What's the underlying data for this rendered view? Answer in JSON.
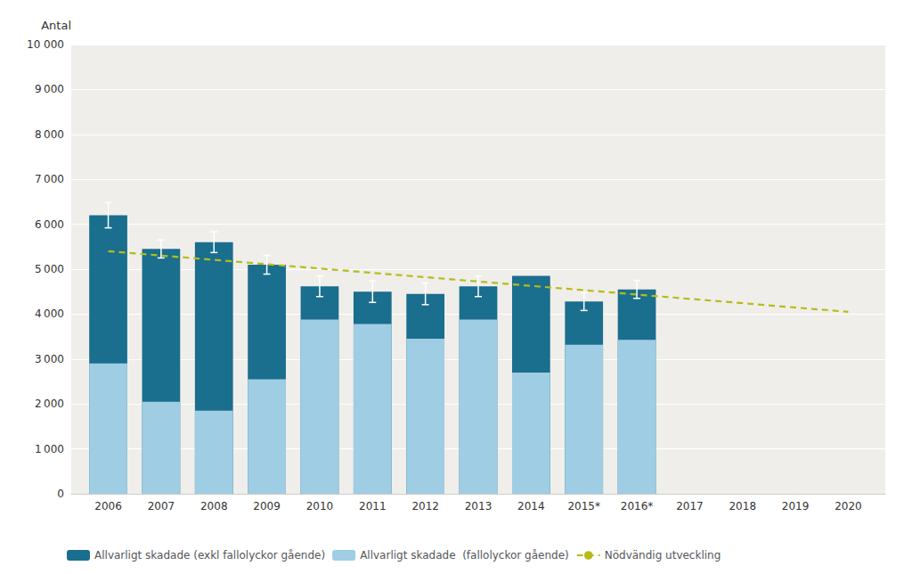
{
  "chart_data": {
    "type": "bar",
    "ylabel": "Antal",
    "x": [
      2006,
      2007,
      2008,
      2009,
      2010,
      2011,
      2012,
      2013,
      2014,
      2015,
      2016
    ],
    "series": [
      {
        "name": "Allvarligt skadade (exkl fallolyckor gående)",
        "color": "#1a6e8e",
        "values": [
          6200,
          5450,
          5600,
          5100,
          4620,
          4500,
          4450,
          4620,
          4850,
          4280,
          4550
        ],
        "error": [
          280,
          200,
          230,
          210,
          230,
          240,
          240,
          230,
          0,
          200,
          200
        ]
      },
      {
        "name": "Allvarligt skadade  (fallolyckor gående)",
        "color": "#9fcde3",
        "values": [
          2900,
          2050,
          1850,
          2550,
          3880,
          3780,
          3450,
          3880,
          2700,
          3320,
          3430
        ]
      },
      {
        "name": "Nödvändig utveckling",
        "type": "line",
        "line_style": "dashed",
        "color": "#b5bc1a",
        "x": [
          2006,
          2020
        ],
        "values": [
          5400,
          4050
        ]
      }
    ],
    "stacked": true,
    "xlim": [
      2005.3,
      2020.7
    ],
    "xticks": [
      2006,
      2007,
      2008,
      2009,
      2010,
      2011,
      2012,
      2013,
      2014,
      {
        "value": 2015,
        "label": "2015*"
      },
      {
        "value": 2016,
        "label": "2016*"
      },
      2017,
      2018,
      2019,
      2020
    ],
    "ylim": [
      0,
      10000
    ],
    "yticks": [
      0,
      {
        "value": 1000,
        "label": "1 000"
      },
      {
        "value": 2000,
        "label": "2 000"
      },
      {
        "value": 3000,
        "label": "3 000"
      },
      {
        "value": 4000,
        "label": "4 000"
      },
      {
        "value": 5000,
        "label": "5 000"
      },
      {
        "value": 6000,
        "label": "6 000"
      },
      {
        "value": 7000,
        "label": "7 000"
      },
      {
        "value": 8000,
        "label": "8 000"
      },
      {
        "value": 9000,
        "label": "9 000"
      },
      {
        "value": 10000,
        "label": "10 000"
      }
    ],
    "grid": true,
    "legend": "lower left"
  }
}
